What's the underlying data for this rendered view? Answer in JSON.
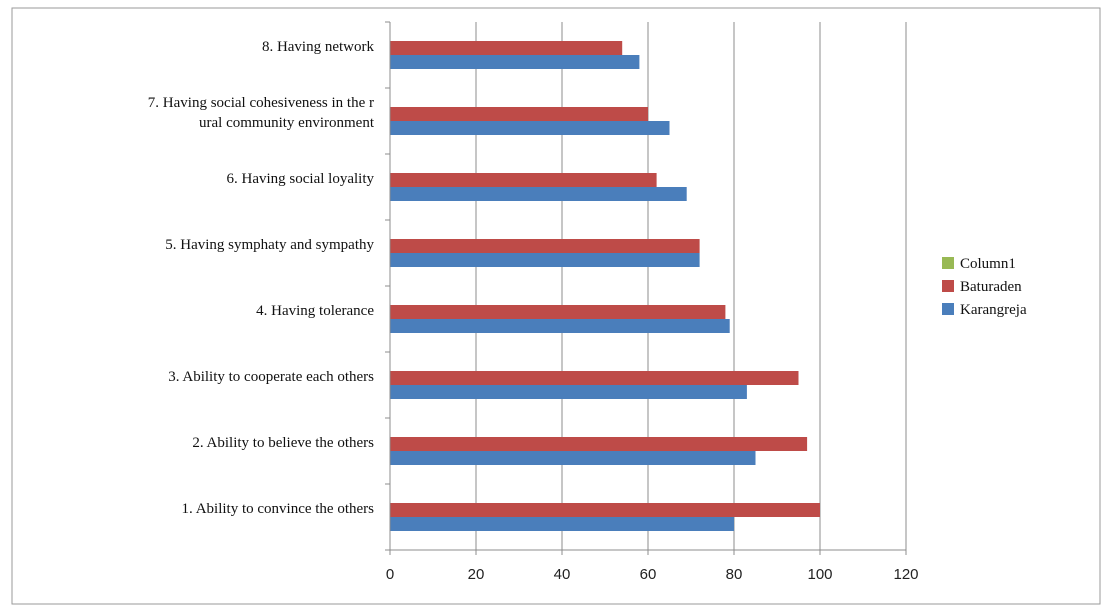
{
  "chart_data": {
    "type": "bar",
    "orientation": "horizontal",
    "categories": [
      [
        "1.  Ability to convince the others"
      ],
      [
        "2.  Ability to believe the others"
      ],
      [
        "3.  Ability to cooperate each others"
      ],
      [
        "4.  Having tolerance"
      ],
      [
        "5.  Having symphaty and sympathy"
      ],
      [
        "6.  Having social loyality"
      ],
      [
        "7.  Having social cohesiveness in the r",
        "ural community environment"
      ],
      [
        "8.  Having network"
      ]
    ],
    "series": [
      {
        "name": "Karangreja",
        "color": "#4a7ebb",
        "values": [
          80,
          85,
          83,
          79,
          72,
          69,
          65,
          58
        ]
      },
      {
        "name": "Baturaden",
        "color": "#be4b48",
        "values": [
          100,
          97,
          95,
          78,
          72,
          62,
          60,
          54
        ]
      }
    ],
    "legend": [
      {
        "name": "Column1",
        "color": "#98b954"
      },
      {
        "name": "Baturaden",
        "color": "#be4b48"
      },
      {
        "name": "Karangreja",
        "color": "#4a7ebb"
      }
    ],
    "x_ticks": [
      "0",
      "20",
      "40",
      "60",
      "80",
      "100",
      "120"
    ],
    "xlim": [
      0,
      120
    ],
    "grid": true,
    "legend_position": "right",
    "title": "",
    "xlabel": "",
    "ylabel": ""
  }
}
